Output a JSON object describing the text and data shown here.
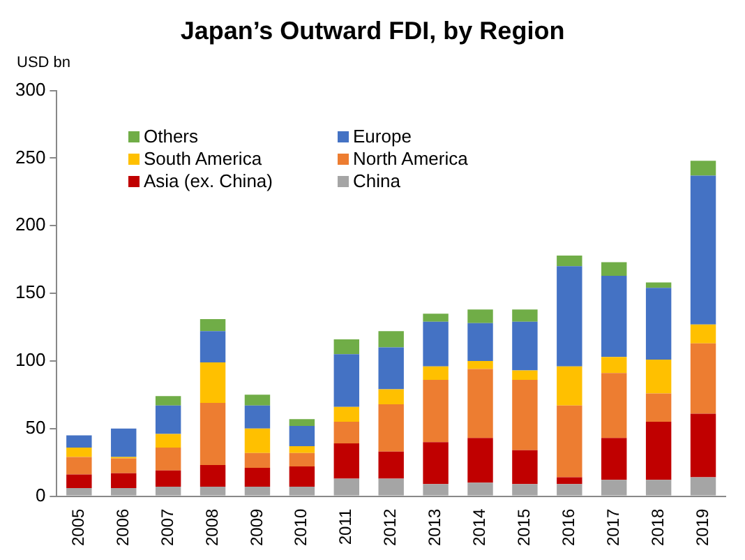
{
  "chart_data": {
    "type": "bar",
    "title": "Japan’s Outward FDI, by Region",
    "ylabel": "USD bn",
    "stacked": true,
    "categories": [
      "2005",
      "2006",
      "2007",
      "2008",
      "2009",
      "2010",
      "2011",
      "2012",
      "2013",
      "2014",
      "2015",
      "2016",
      "2017",
      "2018",
      "2019"
    ],
    "series": [
      {
        "name": "China",
        "color": "#a5a5a5",
        "values": [
          6,
          6,
          7,
          7,
          7,
          7,
          13,
          13,
          9,
          10,
          9,
          9,
          12,
          12,
          14
        ]
      },
      {
        "name": "Asia (ex. China)",
        "color": "#c00000",
        "values": [
          10,
          11,
          12,
          16,
          14,
          15,
          26,
          20,
          31,
          33,
          25,
          5,
          31,
          43,
          47
        ]
      },
      {
        "name": "North America",
        "color": "#ed7d31",
        "values": [
          13,
          11,
          17,
          46,
          11,
          10,
          16,
          35,
          46,
          51,
          52,
          53,
          48,
          21,
          52
        ]
      },
      {
        "name": "South America",
        "color": "#ffc000",
        "values": [
          7,
          1,
          10,
          30,
          18,
          5,
          11,
          11,
          10,
          6,
          7,
          29,
          12,
          25,
          14
        ]
      },
      {
        "name": "Europe",
        "color": "#4472c4",
        "values": [
          9,
          21,
          21,
          23,
          17,
          15,
          39,
          31,
          33,
          28,
          36,
          74,
          60,
          53,
          110
        ]
      },
      {
        "name": "Others",
        "color": "#70ad47",
        "values": [
          0,
          0,
          7,
          9,
          8,
          5,
          11,
          12,
          6,
          10,
          9,
          8,
          10,
          4,
          11
        ]
      }
    ],
    "ylim": [
      0,
      300
    ],
    "yticks": [
      0,
      50,
      100,
      150,
      200,
      250,
      300
    ],
    "grid": false,
    "legend": "top left"
  }
}
